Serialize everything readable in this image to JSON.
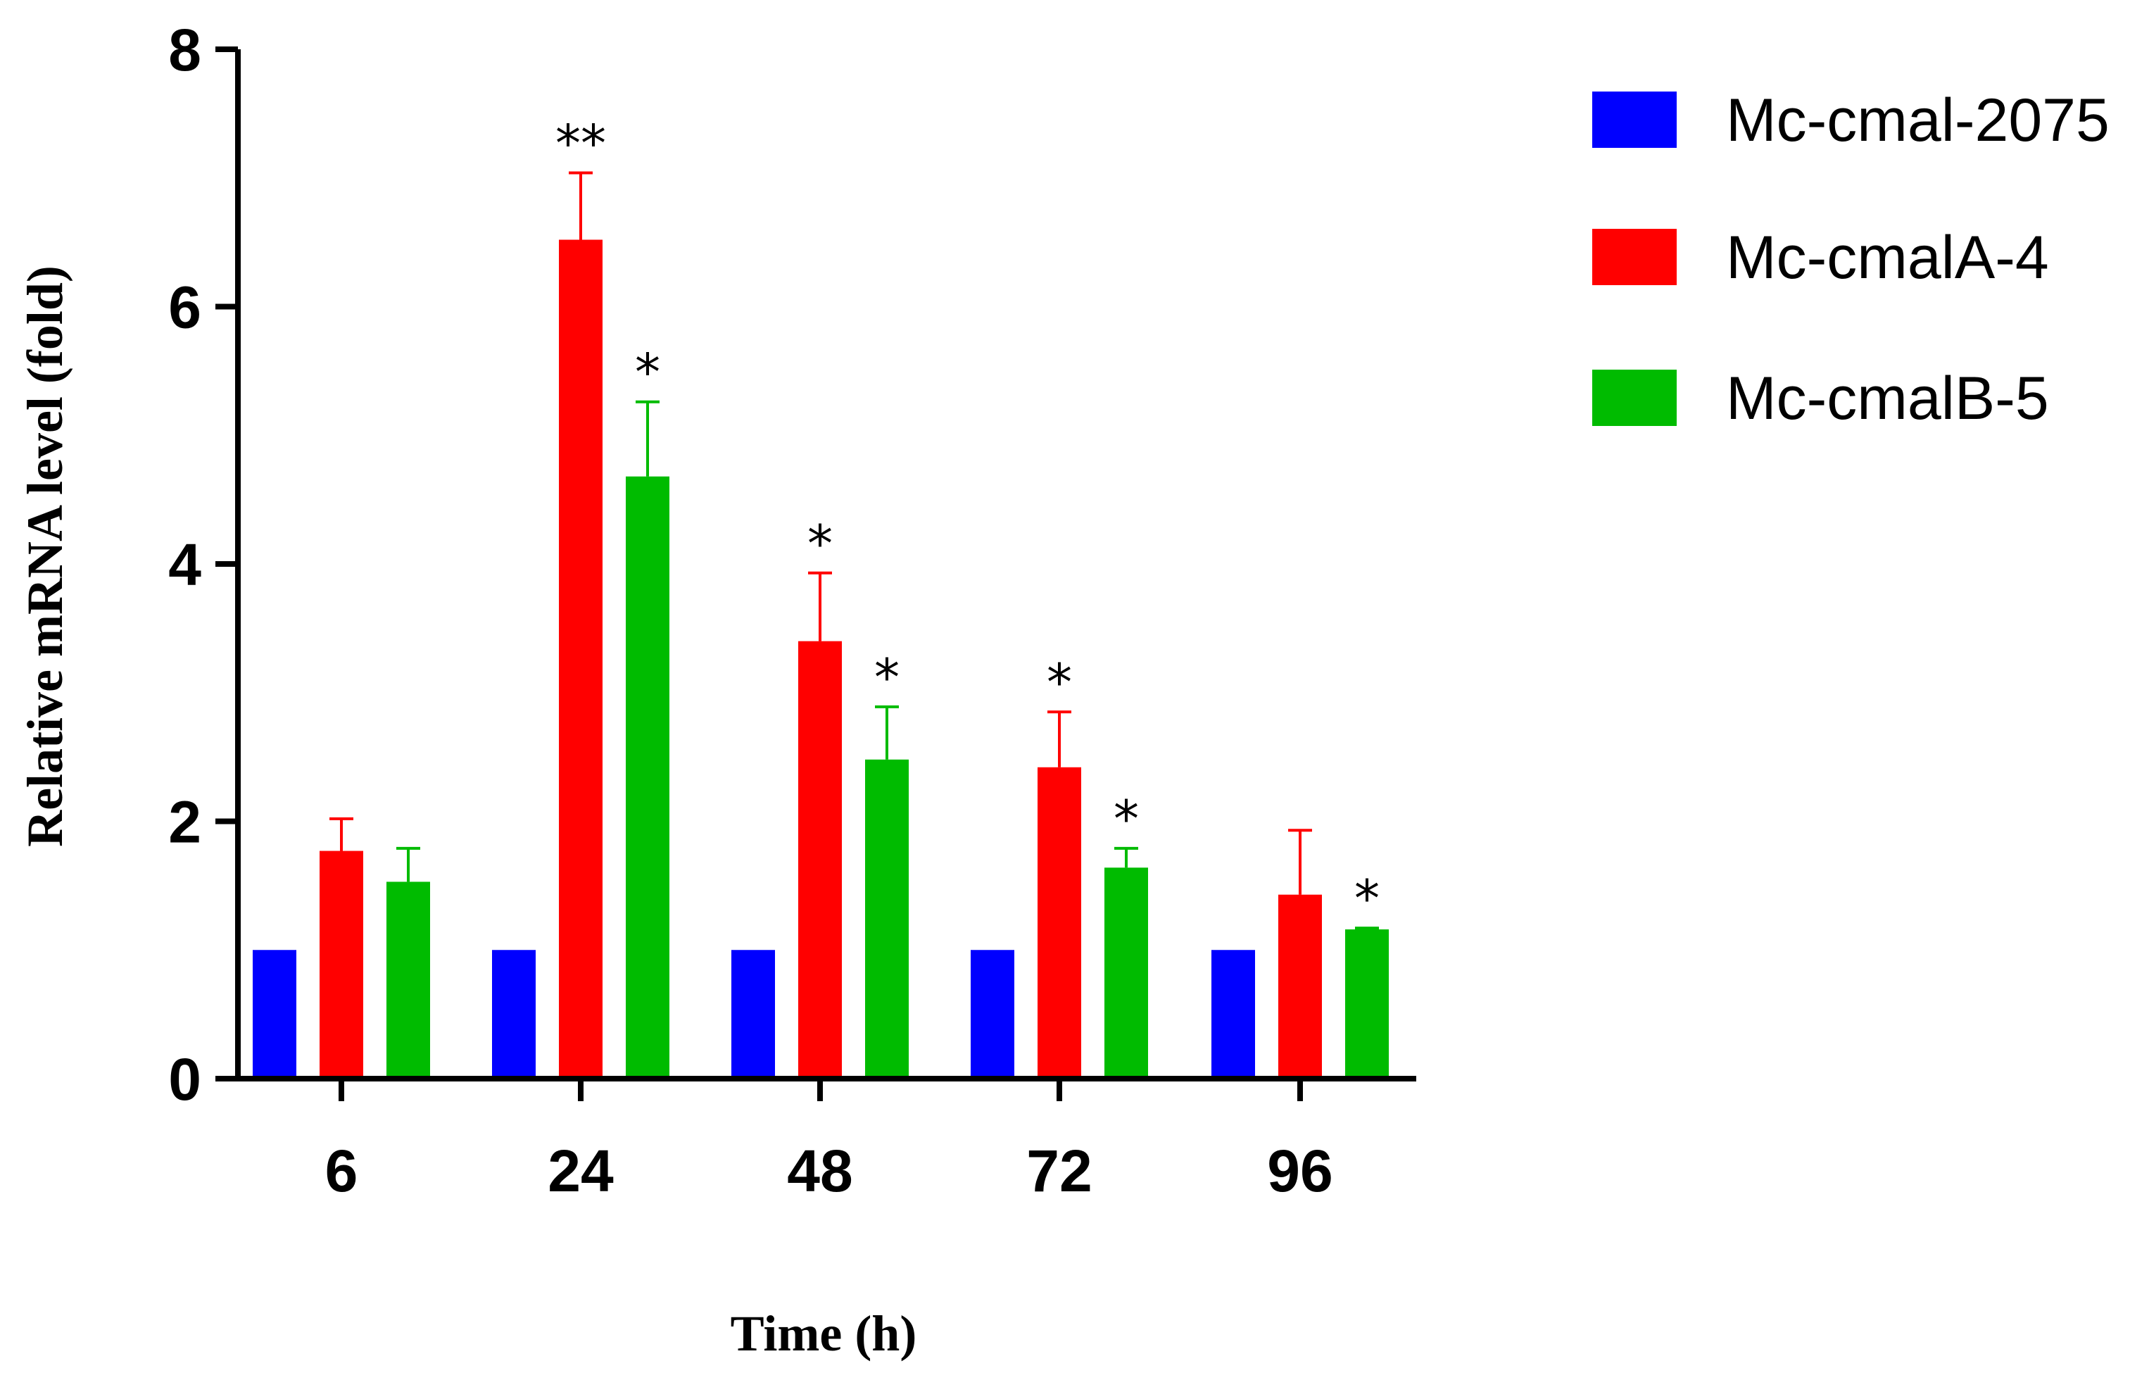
{
  "chart_data": {
    "type": "bar",
    "title": "",
    "xlabel": "Time (h)",
    "ylabel": "Relative mRNA level (fold)",
    "ylim": [
      0,
      8
    ],
    "yticks": [
      0,
      2,
      4,
      6,
      8
    ],
    "categories": [
      "6",
      "24",
      "48",
      "72",
      "96"
    ],
    "grid": false,
    "legend_position": "top-right",
    "series": [
      {
        "name": "Mc-cmal-2075",
        "color": "#0000ff",
        "values": [
          1.0,
          1.0,
          1.0,
          1.0,
          1.0
        ],
        "errors": [
          0,
          0,
          0,
          0,
          0
        ],
        "significance": [
          "",
          "",
          "",
          "",
          ""
        ]
      },
      {
        "name": "Mc-cmalA-4",
        "color": "#ff0000",
        "values": [
          1.77,
          6.52,
          3.4,
          2.42,
          1.43
        ],
        "errors": [
          0.25,
          0.52,
          0.53,
          0.43,
          0.5
        ],
        "significance": [
          "",
          "**",
          "*",
          "*",
          ""
        ]
      },
      {
        "name": "Mc-cmalB-5",
        "color": "#00bb00",
        "values": [
          1.53,
          4.68,
          2.48,
          1.64,
          1.16
        ],
        "errors": [
          0.26,
          0.58,
          0.41,
          0.15,
          0.01
        ],
        "significance": [
          "",
          "*",
          "*",
          "*",
          "*"
        ]
      }
    ]
  }
}
